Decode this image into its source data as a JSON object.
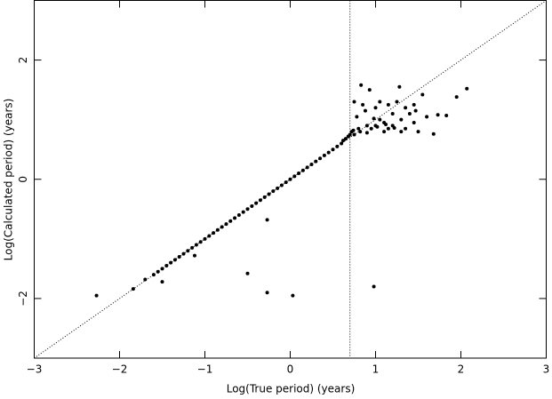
{
  "chart_data": {
    "type": "scatter",
    "x_label": "Log(True period) (years)",
    "y_label": "Log(Calculated period) (years)",
    "xlim": [
      -3,
      3
    ],
    "ylim": [
      -3,
      3
    ],
    "xticks": [
      {
        "value": -3,
        "label": "−3"
      },
      {
        "value": -2,
        "label": "−2"
      },
      {
        "value": -1,
        "label": "−1"
      },
      0,
      1,
      2,
      3
    ],
    "yticks": [
      {
        "value": -2,
        "label": "−2"
      },
      0,
      2
    ],
    "diagonal": true,
    "vline": 0.7,
    "color": "#000000",
    "x": [
      -2.27,
      -1.84,
      -1.7,
      -1.6,
      -1.55,
      -1.5,
      -1.45,
      -1.4,
      -1.35,
      -1.3,
      -1.25,
      -1.2,
      -1.15,
      -1.1,
      -1.05,
      -1.0,
      -0.95,
      -0.9,
      -0.85,
      -0.8,
      -0.75,
      -0.7,
      -0.65,
      -0.6,
      -0.55,
      -0.5,
      -0.45,
      -0.4,
      -0.35,
      -0.3,
      -0.25,
      -0.2,
      -0.15,
      -0.1,
      -0.05,
      0.0,
      0.05,
      0.1,
      0.15,
      0.2,
      0.25,
      0.3,
      0.35,
      0.4,
      0.45,
      0.5,
      0.55,
      0.6,
      0.62,
      0.65,
      0.68,
      0.7,
      -1.5,
      -1.12,
      -0.27,
      -0.5,
      -0.27,
      0.03,
      0.98,
      0.83,
      0.93,
      1.28,
      1.55,
      1.95,
      2.07,
      1.68,
      1.73,
      1.83,
      1.47,
      0.75,
      0.78,
      0.85,
      0.9,
      1.0,
      1.05,
      1.1,
      1.15,
      1.2,
      1.25,
      1.3,
      1.35,
      1.4,
      1.45,
      1.5,
      1.1,
      0.95,
      0.8,
      0.75,
      1.0,
      1.2,
      1.35,
      0.88,
      1.05,
      1.15,
      1.3,
      1.45,
      1.6,
      0.72,
      0.98,
      0.74,
      0.82,
      0.9,
      1.02,
      1.12,
      1.22
    ],
    "values": [
      -1.95,
      -1.84,
      -1.68,
      -1.6,
      -1.55,
      -1.5,
      -1.45,
      -1.4,
      -1.35,
      -1.3,
      -1.25,
      -1.2,
      -1.15,
      -1.1,
      -1.05,
      -1.0,
      -0.95,
      -0.9,
      -0.85,
      -0.8,
      -0.75,
      -0.7,
      -0.65,
      -0.6,
      -0.55,
      -0.5,
      -0.45,
      -0.4,
      -0.35,
      -0.3,
      -0.25,
      -0.2,
      -0.15,
      -0.1,
      -0.05,
      0.0,
      0.05,
      0.1,
      0.15,
      0.2,
      0.25,
      0.3,
      0.35,
      0.4,
      0.45,
      0.5,
      0.55,
      0.6,
      0.65,
      0.68,
      0.72,
      0.75,
      -1.72,
      -1.28,
      -0.68,
      -1.58,
      -1.9,
      -1.95,
      -1.8,
      1.58,
      1.5,
      1.55,
      1.42,
      1.38,
      1.52,
      0.76,
      1.08,
      1.07,
      1.15,
      1.3,
      1.05,
      1.25,
      0.9,
      1.2,
      1.0,
      0.95,
      1.25,
      0.9,
      1.3,
      1.0,
      0.85,
      1.1,
      0.95,
      0.8,
      0.8,
      0.85,
      0.85,
      0.75,
      0.9,
      1.1,
      1.2,
      1.15,
      1.3,
      0.85,
      0.8,
      1.25,
      1.05,
      0.8,
      1.02,
      0.82,
      0.8,
      0.78,
      0.88,
      0.92,
      0.86
    ]
  }
}
